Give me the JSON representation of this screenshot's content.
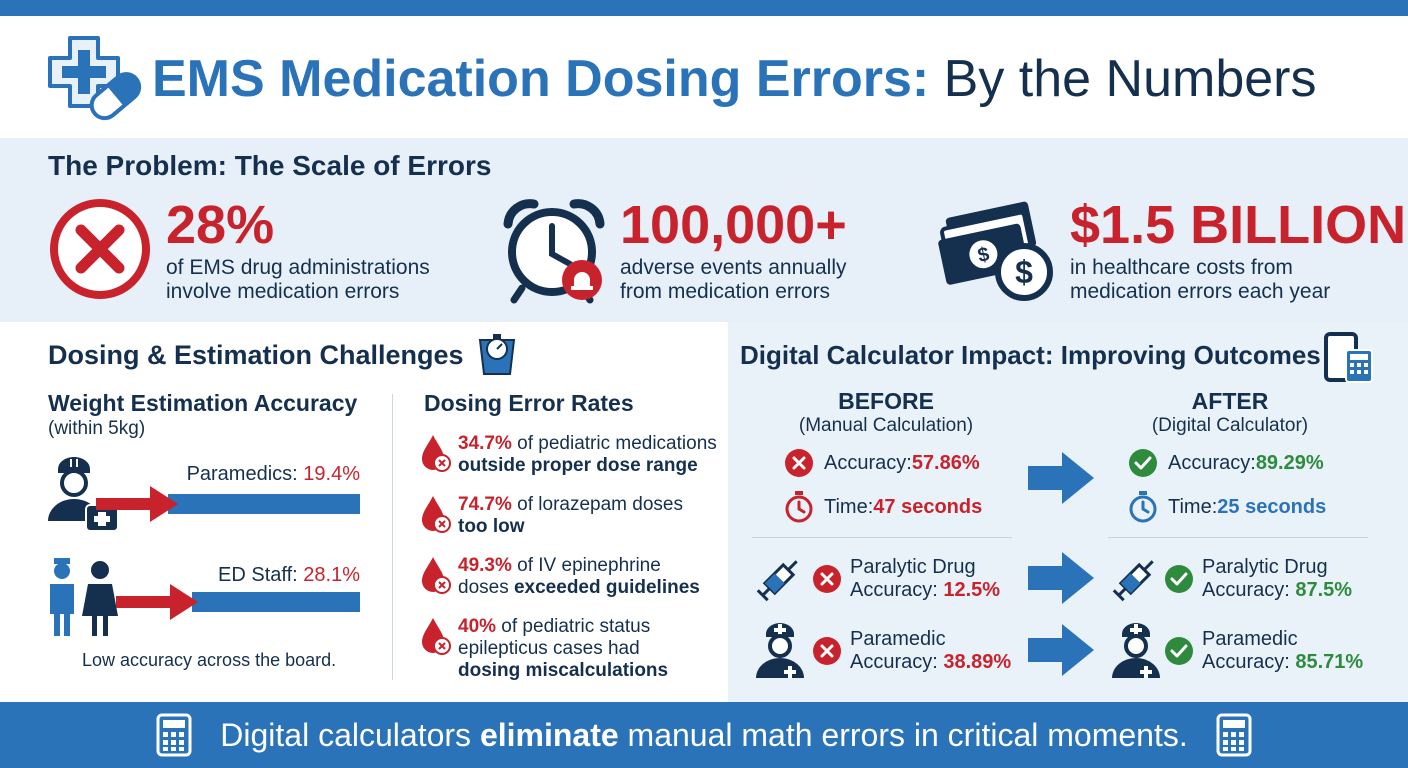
{
  "title": {
    "highlight": "EMS Medication Dosing Errors:",
    "rest": " By the Numbers"
  },
  "problem": {
    "heading": "The Problem: The Scale of Errors",
    "stats": [
      {
        "value": "28%",
        "line1": "of EMS drug administrations",
        "line2": "involve medication errors",
        "icon": "x-circle-icon"
      },
      {
        "value": "100,000+",
        "line1": "adverse events annually",
        "line2": "from medication errors",
        "icon": "alarm-clock-icon"
      },
      {
        "value": "$1.5 BILLION",
        "line1": "in healthcare costs from",
        "line2": "medication errors each year",
        "icon": "money-icon"
      }
    ]
  },
  "challenges": {
    "heading": "Dosing & Estimation Challenges",
    "weight": {
      "heading": "Weight Estimation Accuracy",
      "note": "(within 5kg)",
      "rows": [
        {
          "label": "Paramedics: ",
          "pct": "19.4%",
          "value": 19.4
        },
        {
          "label": "ED Staff: ",
          "pct": "28.1%",
          "value": 28.1
        }
      ],
      "footer": "Low accuracy across the board."
    },
    "dosing": {
      "heading": "Dosing Error Rates",
      "items": [
        {
          "pct": "34.7%",
          "a": " of pediatric medications",
          "b": "outside proper dose range"
        },
        {
          "pct": "74.7%",
          "a": " of lorazepam doses",
          "b": "too low"
        },
        {
          "pct": "49.3%",
          "a": " of IV epinephrine",
          "b_pre": "doses ",
          "b": "exceeded guidelines"
        },
        {
          "pct": "40%",
          "a": " of pediatric status",
          "mid": "epilepticus cases had",
          "b": "dosing miscalculations"
        }
      ]
    }
  },
  "impact": {
    "heading": "Digital Calculator Impact: Improving Outcomes",
    "before": {
      "title": "BEFORE",
      "subtitle": "(Manual Calculation)"
    },
    "after": {
      "title": "AFTER",
      "subtitle": "(Digital Calculator)"
    },
    "accuracy": {
      "label": "Accuracy: ",
      "before": "57.86%",
      "after": "89.29%"
    },
    "time": {
      "label": "Time: ",
      "before": "47 seconds",
      "after": "25 seconds"
    },
    "paralytic": {
      "line1": "Paralytic Drug",
      "label": "Accuracy: ",
      "before": "12.5%",
      "after": "87.5%"
    },
    "paramedic": {
      "line1": "Paramedic",
      "label": "Accuracy: ",
      "before": "38.89%",
      "after": "85.71%"
    }
  },
  "footer": {
    "pre": "Digital calculators ",
    "bold": "eliminate",
    "post": " manual math errors in critical moments."
  },
  "colors": {
    "brand_blue": "#2a73b8",
    "alert_red": "#c8232c",
    "success_green": "#2e8b3e",
    "navy": "#15304f"
  }
}
